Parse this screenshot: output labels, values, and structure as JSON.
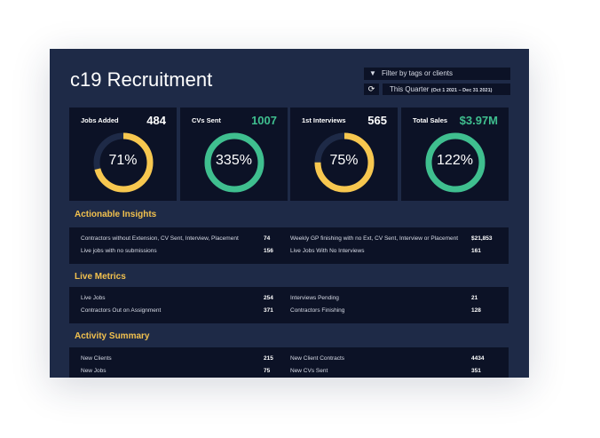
{
  "header": {
    "title": "c19 Recruitment",
    "filter_placeholder": "Filter by tags or clients",
    "filter_icon": "filter-icon",
    "refresh_icon": "refresh-icon",
    "period": "This Quarter",
    "period_range": "(Oct 1 2021 – Dec 31 2021)"
  },
  "cards": [
    {
      "label": "Jobs Added",
      "value": "484",
      "percent": "71%",
      "fraction": 0.71,
      "color": "#f7c74f",
      "value_color": "#ffffff"
    },
    {
      "label": "CVs Sent",
      "value": "1007",
      "percent": "335%",
      "fraction": 1,
      "color": "#3fbf8f",
      "value_color": "#3fbf8f"
    },
    {
      "label": "1st Interviews",
      "value": "565",
      "percent": "75%",
      "fraction": 0.75,
      "color": "#f7c74f",
      "value_color": "#ffffff"
    },
    {
      "label": "Total Sales",
      "value": "$3.97M",
      "percent": "122%",
      "fraction": 1,
      "color": "#3fbf8f",
      "value_color": "#3fbf8f"
    }
  ],
  "sections": [
    {
      "title": "Actionable Insights",
      "rows": [
        {
          "label": "Contractors without Extension, CV Sent, Interview, Placement",
          "value": "74"
        },
        {
          "label": "Live jobs with no submissions",
          "value": "156"
        },
        {
          "label": "Weekly GP finishing with no Ext, CV Sent, Interview or Placement",
          "value": "$21,853"
        },
        {
          "label": "Live Jobs With No Interviews",
          "value": "161"
        }
      ]
    },
    {
      "title": "Live Metrics",
      "rows": [
        {
          "label": "Live Jobs",
          "value": "254"
        },
        {
          "label": "Contractors Out on Assignment",
          "value": "371"
        },
        {
          "label": "Interviews Pending",
          "value": "21"
        },
        {
          "label": "Contractors Finishing",
          "value": "128"
        }
      ]
    },
    {
      "title": "Activity Summary",
      "rows": [
        {
          "label": "New Clients",
          "value": "215"
        },
        {
          "label": "New Jobs",
          "value": "75"
        },
        {
          "label": "New Client Contracts",
          "value": "4434"
        },
        {
          "label": "New CVs Sent",
          "value": "351"
        }
      ]
    }
  ]
}
